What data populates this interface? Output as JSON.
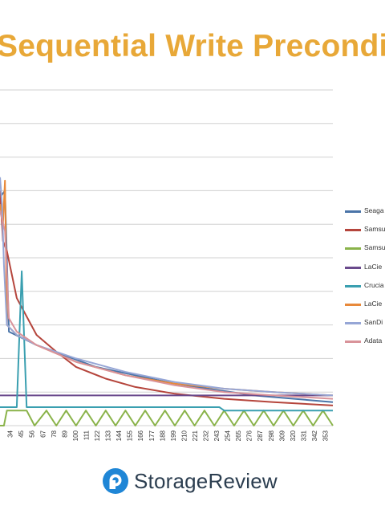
{
  "title": "Sequential Write Precondi",
  "brand": {
    "name": "StorageReview",
    "accent": "#1f86d6",
    "text_color": "#2c3e50"
  },
  "colors": {
    "title": "#e8a838",
    "grid": "#d0d0d0"
  },
  "chart_data": {
    "type": "line",
    "title": "Sequential Write Precondi",
    "xlabel": "",
    "ylabel": "",
    "grid": true,
    "legend_position": "right",
    "xlim": [
      23,
      360
    ],
    "x_ticks": [
      "34",
      "45",
      "56",
      "67",
      "78",
      "89",
      "100",
      "111",
      "122",
      "133",
      "144",
      "155",
      "166",
      "177",
      "188",
      "199",
      "210",
      "221",
      "232",
      "243",
      "254",
      "265",
      "276",
      "287",
      "298",
      "309",
      "320",
      "331",
      "342",
      "353"
    ],
    "series": [
      {
        "name": "Seaga",
        "color": "#4a74a8",
        "x": [
          23,
          28,
          32,
          60,
          120,
          200,
          280,
          360
        ],
        "y": [
          0.68,
          0.7,
          0.28,
          0.24,
          0.175,
          0.125,
          0.09,
          0.07
        ]
      },
      {
        "name": "Samsu",
        "color": "#b5453c",
        "x": [
          23,
          26,
          30,
          40,
          60,
          80,
          100,
          130,
          160,
          200,
          250,
          300,
          360
        ],
        "y": [
          0.7,
          0.55,
          0.52,
          0.38,
          0.27,
          0.22,
          0.175,
          0.14,
          0.115,
          0.095,
          0.08,
          0.07,
          0.06
        ]
      },
      {
        "name": "Samsu",
        "color": "#8ab34a",
        "x": [
          23,
          27,
          30,
          36,
          50,
          58,
          70,
          80,
          90,
          100,
          110,
          120,
          130,
          140,
          150,
          160,
          170,
          180,
          190,
          200,
          210,
          220,
          230,
          240,
          250,
          260,
          270,
          280,
          290,
          300,
          310,
          320,
          330,
          340,
          350,
          360
        ],
        "y": [
          0.0,
          0.0,
          0.045,
          0.045,
          0.045,
          0.0,
          0.045,
          0.0,
          0.045,
          0.0,
          0.045,
          0.0,
          0.045,
          0.0,
          0.045,
          0.0,
          0.045,
          0.0,
          0.045,
          0.0,
          0.045,
          0.0,
          0.045,
          0.0,
          0.045,
          0.0,
          0.045,
          0.0,
          0.045,
          0.0,
          0.045,
          0.0,
          0.045,
          0.0,
          0.045,
          0.0
        ]
      },
      {
        "name": "LaCie",
        "color": "#6a4a8c",
        "x": [
          23,
          360
        ],
        "y": [
          0.09,
          0.09
        ]
      },
      {
        "name": "Crucia",
        "color": "#3a9fb0",
        "x": [
          23,
          40,
          45,
          50,
          55,
          60,
          70,
          100,
          150,
          200,
          245,
          250,
          300,
          360
        ],
        "y": [
          0.055,
          0.055,
          0.46,
          0.055,
          0.055,
          0.055,
          0.055,
          0.055,
          0.055,
          0.055,
          0.055,
          0.045,
          0.045,
          0.045
        ]
      },
      {
        "name": "LaCie",
        "color": "#e8893a",
        "x": [
          23,
          26,
          28,
          30,
          40,
          60,
          100,
          150,
          200,
          250,
          300,
          360
        ],
        "y": [
          0.66,
          0.6,
          0.73,
          0.3,
          0.27,
          0.24,
          0.19,
          0.15,
          0.125,
          0.11,
          0.1,
          0.09
        ]
      },
      {
        "name": "SanDi",
        "color": "#96a6d6",
        "x": [
          23,
          25,
          27,
          30,
          40,
          60,
          100,
          150,
          200,
          250,
          300,
          360
        ],
        "y": [
          0.74,
          0.66,
          0.48,
          0.3,
          0.27,
          0.24,
          0.2,
          0.16,
          0.13,
          0.11,
          0.1,
          0.09
        ]
      },
      {
        "name": "Adata",
        "color": "#d9939a",
        "x": [
          23,
          28,
          32,
          40,
          60,
          100,
          150,
          200,
          250,
          300,
          360
        ],
        "y": [
          0.64,
          0.58,
          0.32,
          0.28,
          0.24,
          0.19,
          0.15,
          0.12,
          0.1,
          0.09,
          0.08
        ]
      }
    ]
  }
}
